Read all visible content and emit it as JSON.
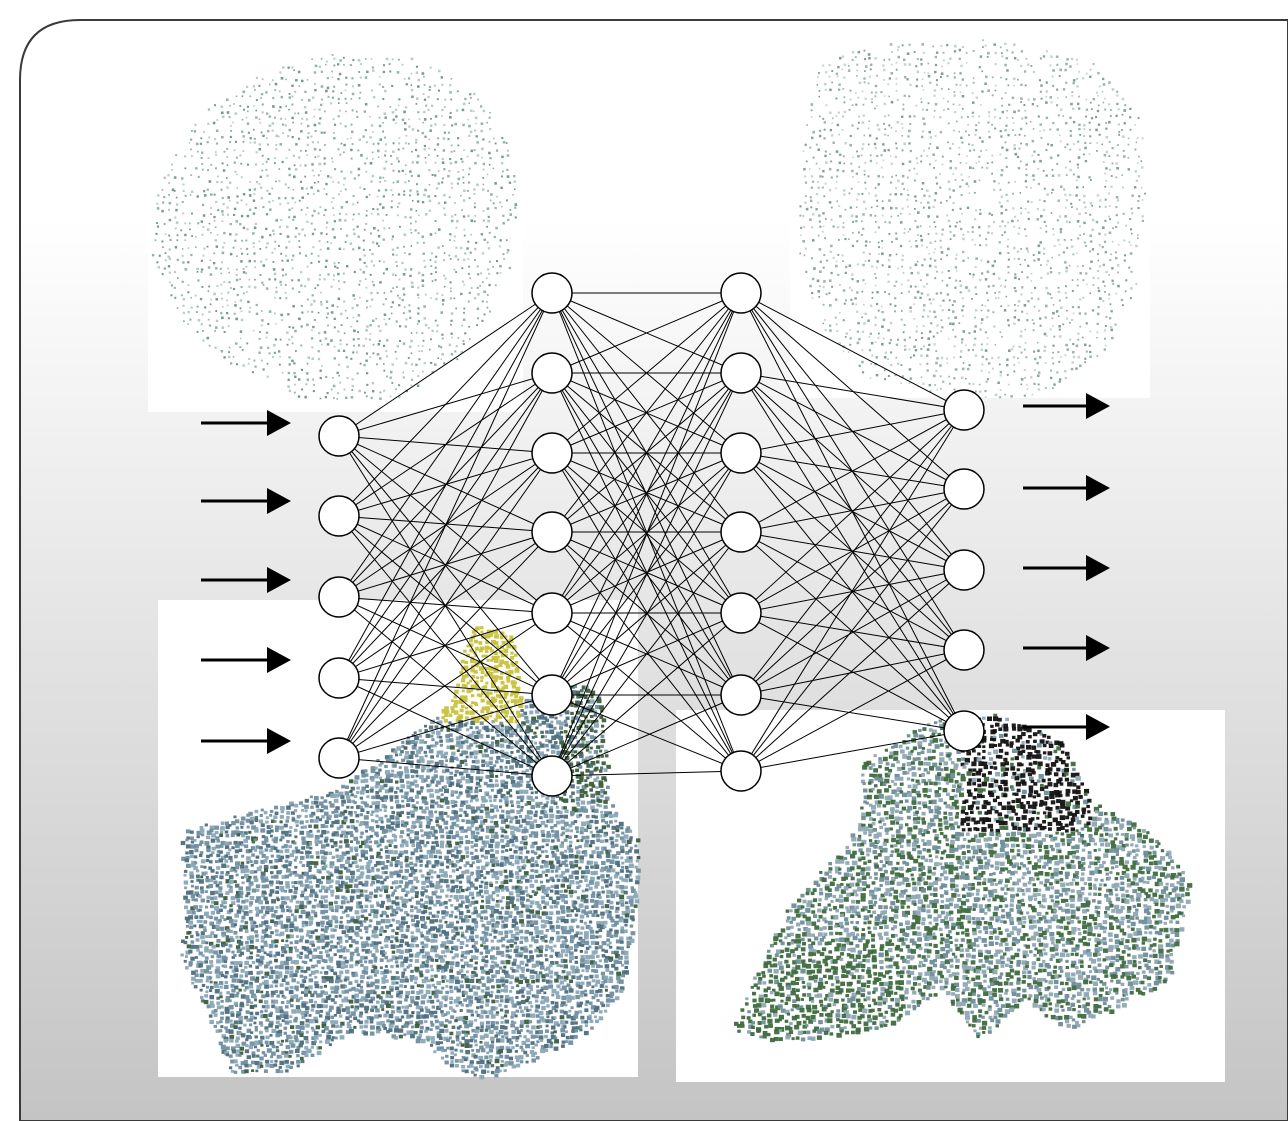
{
  "slide": {
    "background_top": "#ffffff",
    "background_bottom": "#c4c4c4",
    "border_color": "#3a3a3a"
  },
  "network": {
    "layers": [
      5,
      7,
      7,
      5
    ],
    "edge_color": "#000000",
    "node_fill": "#ffffff",
    "node_stroke": "#000000"
  },
  "arrows": {
    "input_count": 5,
    "output_count": 5,
    "color": "#000000"
  },
  "point_clouds": [
    {
      "id": "top-left",
      "style": "sparse-dots",
      "colors": [
        "#7fa898",
        "#5e8a7a",
        "#a9c4b6"
      ]
    },
    {
      "id": "top-right",
      "style": "sparse-dots",
      "colors": [
        "#8aa99a",
        "#6a8f80",
        "#b8cdc1"
      ]
    },
    {
      "id": "bottom-left",
      "style": "dense-leaf",
      "colors": [
        "#6f8ea0",
        "#8aa6b6",
        "#4c6e7e",
        "#3b5e3a",
        "#c9c23a"
      ]
    },
    {
      "id": "bottom-right",
      "style": "dense-leaf",
      "colors": [
        "#6e8d98",
        "#8ea8b4",
        "#3e6a3e",
        "#111111"
      ]
    }
  ]
}
